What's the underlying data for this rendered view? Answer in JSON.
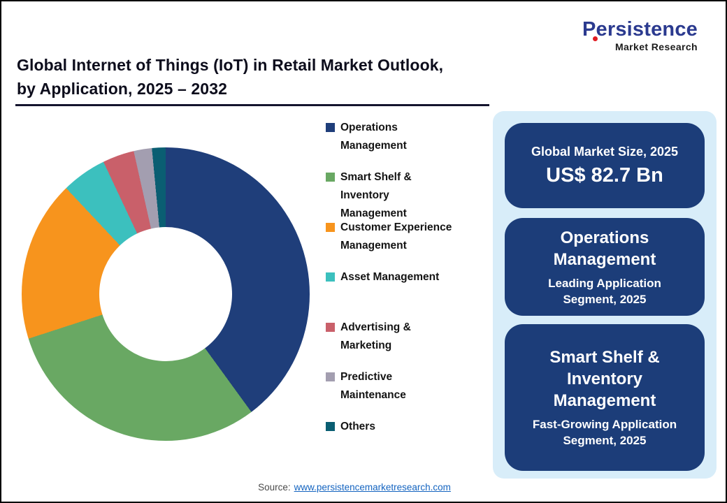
{
  "header": {
    "title_line1": "Global Internet of Things (IoT) in Retail Market Outlook,",
    "title_line2": "by Application, 2025 – 2032"
  },
  "logo": {
    "name": "Persistence",
    "subtitle": "Market Research",
    "accent_color": "#e01b22",
    "brand_color": "#2b3a8f"
  },
  "chart_data": {
    "type": "pie",
    "style": "donut",
    "title": "Global Internet of Things (IoT) in Retail Market Outlook, by Application, 2025 – 2032",
    "start_angle_deg": 0,
    "direction": "clockwise",
    "unit": "percent share, estimated from arc angles",
    "legend_position": "right",
    "data_labels": false,
    "segments": [
      {
        "label": "Operations Management",
        "legend_label": "Operations\nManagement",
        "value": 40,
        "color": "#1F3E7A"
      },
      {
        "label": "Smart Shelf & Inventory Management",
        "legend_label": "Smart Shelf &\nInventory\nManagement",
        "value": 30,
        "color": "#69A863"
      },
      {
        "label": "Customer Experience Management",
        "legend_label": "Customer Experience\nManagement",
        "value": 18,
        "color": "#F7941D"
      },
      {
        "label": "Asset Management",
        "legend_label": "Asset Management",
        "value": 5,
        "color": "#3CC0BE"
      },
      {
        "label": "Advertising & Marketing",
        "legend_label": "Advertising &\nMarketing",
        "value": 3.5,
        "color": "#C9606A"
      },
      {
        "label": "Predictive Maintenance",
        "legend_label": "Predictive\nMaintenance",
        "value": 2,
        "color": "#A39EB0"
      },
      {
        "label": "Others",
        "legend_label": "Others",
        "value": 1.5,
        "color": "#0A5E72"
      }
    ]
  },
  "highlights": [
    {
      "title": "Global Market Size, 2025",
      "value": "US$ 82.7 Bn"
    },
    {
      "title": "Operations\nManagement",
      "subtitle": "Leading Application\nSegment, 2025"
    },
    {
      "title": "Smart Shelf &\nInventory\nManagement",
      "subtitle": "Fast-Growing Application\nSegment, 2025"
    }
  ],
  "footer": {
    "source_label": "Source:",
    "source_link": "www.persistencemarketresearch.com"
  },
  "colors": {
    "panel_background": "#d8edf9",
    "highlight_box": "#1c3d79",
    "title_text": "#0d0d1c"
  }
}
